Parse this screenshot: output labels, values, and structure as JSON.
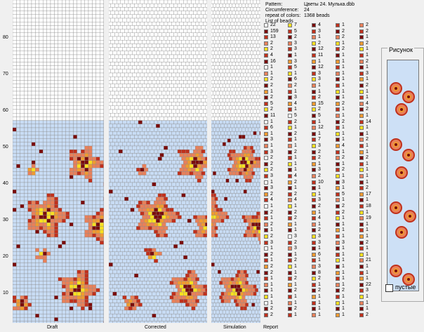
{
  "ruler": {
    "labels": [
      "80",
      "70",
      "60",
      "50",
      "40",
      "30",
      "20",
      "10"
    ]
  },
  "panels": [
    {
      "name": "draft",
      "caption": "Draft"
    },
    {
      "name": "corrected",
      "caption": "Corrected"
    },
    {
      "name": "simulation",
      "caption": "Simulation"
    }
  ],
  "report_caption": "Report",
  "info": {
    "pattern_label": "Pattern:",
    "pattern_value": "Цветы 24. Мулька.dbb",
    "circumference_label": "Circumference:",
    "circumference_value": "24",
    "repeat_label": "repeat of colors:",
    "repeat_value": "1368 beads",
    "list_label": "List of beads"
  },
  "colors": {
    "background_bead": "#c8dcf4",
    "dark_red": "#7a0c0c",
    "red": "#c0301c",
    "salmon": "#e8805a",
    "orange": "#f09a30",
    "yellow": "#f8e020",
    "white": "#ffffff"
  },
  "legend_columns": [
    [
      [
        "white",
        "22"
      ],
      [
        "dark_red",
        "159"
      ],
      [
        "red",
        "13"
      ],
      [
        "salmon",
        "2"
      ],
      [
        "yellow",
        "2"
      ],
      [
        "red",
        "4"
      ],
      [
        "dark_red",
        "16"
      ],
      [
        "white",
        "1"
      ],
      [
        "salmon",
        "1"
      ],
      [
        "yellow",
        "2"
      ],
      [
        "dark_red",
        "2"
      ],
      [
        "orange",
        "1"
      ],
      [
        "dark_red",
        "2"
      ],
      [
        "red",
        "5"
      ],
      [
        "yellow",
        "2"
      ],
      [
        "dark_red",
        "11"
      ],
      [
        "white",
        "1"
      ],
      [
        "red",
        "6"
      ],
      [
        "orange",
        "1"
      ],
      [
        "dark_red",
        "3"
      ],
      [
        "salmon",
        "1"
      ],
      [
        "red",
        "3"
      ],
      [
        "white",
        "2"
      ],
      [
        "dark_red",
        "2"
      ],
      [
        "yellow",
        "2"
      ],
      [
        "red",
        "3"
      ],
      [
        "white",
        "1"
      ],
      [
        "dark_red",
        "3"
      ],
      [
        "orange",
        "2"
      ],
      [
        "red",
        "4"
      ],
      [
        "white",
        "1"
      ],
      [
        "dark_red",
        "2"
      ],
      [
        "red",
        "1"
      ],
      [
        "salmon",
        "2"
      ],
      [
        "dark_red",
        "1"
      ],
      [
        "yellow",
        "2"
      ],
      [
        "red",
        "3"
      ],
      [
        "white",
        "1"
      ],
      [
        "dark_red",
        "2"
      ],
      [
        "red",
        "1"
      ],
      [
        "orange",
        "2"
      ],
      [
        "dark_red",
        "2"
      ],
      [
        "red",
        "1"
      ],
      [
        "salmon",
        "1"
      ],
      [
        "dark_red",
        "1"
      ],
      [
        "yellow",
        "1"
      ],
      [
        "white",
        "1"
      ],
      [
        "dark_red",
        "2"
      ],
      [
        "red",
        "2"
      ]
    ],
    [
      [
        "yellow",
        "7"
      ],
      [
        "red",
        "5"
      ],
      [
        "dark_red",
        "2"
      ],
      [
        "salmon",
        "3"
      ],
      [
        "red",
        "3"
      ],
      [
        "dark_red",
        "1"
      ],
      [
        "orange",
        "3"
      ],
      [
        "red",
        "5"
      ],
      [
        "yellow",
        "1"
      ],
      [
        "dark_red",
        "6"
      ],
      [
        "salmon",
        "2"
      ],
      [
        "red",
        "1"
      ],
      [
        "dark_red",
        "3"
      ],
      [
        "orange",
        "4"
      ],
      [
        "red",
        "1"
      ],
      [
        "white",
        "5"
      ],
      [
        "red",
        "2"
      ],
      [
        "yellow",
        "1"
      ],
      [
        "dark_red",
        "2"
      ],
      [
        "red",
        "1"
      ],
      [
        "salmon",
        "1"
      ],
      [
        "dark_red",
        "2"
      ],
      [
        "red",
        "1"
      ],
      [
        "yellow",
        "1"
      ],
      [
        "dark_red",
        "1"
      ],
      [
        "red",
        "4"
      ],
      [
        "orange",
        "2"
      ],
      [
        "dark_red",
        "1"
      ],
      [
        "red",
        "2"
      ],
      [
        "salmon",
        "4"
      ],
      [
        "yellow",
        "1"
      ],
      [
        "dark_red",
        "2"
      ],
      [
        "red",
        "2"
      ],
      [
        "orange",
        "1"
      ],
      [
        "dark_red",
        "1"
      ],
      [
        "white",
        "3"
      ],
      [
        "red",
        "2"
      ],
      [
        "salmon",
        "3"
      ],
      [
        "dark_red",
        "1"
      ],
      [
        "red",
        "2"
      ],
      [
        "yellow",
        "1"
      ],
      [
        "dark_red",
        "1"
      ],
      [
        "red",
        "2"
      ],
      [
        "orange",
        "1"
      ],
      [
        "dark_red",
        "2"
      ],
      [
        "red",
        "1"
      ],
      [
        "salmon",
        "1"
      ],
      [
        "dark_red",
        "2"
      ],
      [
        "red",
        "1"
      ]
    ],
    [
      [
        "dark_red",
        "4"
      ],
      [
        "red",
        "3"
      ],
      [
        "salmon",
        "1"
      ],
      [
        "yellow",
        "2"
      ],
      [
        "dark_red",
        "12"
      ],
      [
        "red",
        "11"
      ],
      [
        "orange",
        "1"
      ],
      [
        "dark_red",
        "12"
      ],
      [
        "red",
        "3"
      ],
      [
        "yellow",
        "3"
      ],
      [
        "salmon",
        "1"
      ],
      [
        "dark_red",
        "1"
      ],
      [
        "red",
        "2"
      ],
      [
        "orange",
        "15"
      ],
      [
        "yellow",
        "2"
      ],
      [
        "dark_red",
        "5"
      ],
      [
        "red",
        "1"
      ],
      [
        "salmon",
        "12"
      ],
      [
        "dark_red",
        "1"
      ],
      [
        "red",
        "7"
      ],
      [
        "yellow",
        "3"
      ],
      [
        "dark_red",
        "2"
      ],
      [
        "red",
        "2"
      ],
      [
        "orange",
        "1"
      ],
      [
        "dark_red",
        "3"
      ],
      [
        "salmon",
        "2"
      ],
      [
        "red",
        "10"
      ],
      [
        "dark_red",
        "1"
      ],
      [
        "yellow",
        "1"
      ],
      [
        "red",
        "3"
      ],
      [
        "dark_red",
        "2"
      ],
      [
        "orange",
        "1"
      ],
      [
        "red",
        "4"
      ],
      [
        "salmon",
        "1"
      ],
      [
        "dark_red",
        "2"
      ],
      [
        "yellow",
        "3"
      ],
      [
        "red",
        "3"
      ],
      [
        "dark_red",
        "1"
      ],
      [
        "orange",
        "6"
      ],
      [
        "red",
        "1"
      ],
      [
        "salmon",
        "3"
      ],
      [
        "dark_red",
        "8"
      ],
      [
        "yellow",
        "2"
      ],
      [
        "red",
        "1"
      ],
      [
        "dark_red",
        "2"
      ],
      [
        "orange",
        "1"
      ],
      [
        "red",
        "1"
      ],
      [
        "dark_red",
        "1"
      ],
      [
        "salmon",
        "1"
      ]
    ],
    [
      [
        "red",
        "1"
      ],
      [
        "dark_red",
        "2"
      ],
      [
        "salmon",
        "2"
      ],
      [
        "yellow",
        "1"
      ],
      [
        "red",
        "2"
      ],
      [
        "dark_red",
        "1"
      ],
      [
        "orange",
        "1"
      ],
      [
        "red",
        "1"
      ],
      [
        "salmon",
        "1"
      ],
      [
        "dark_red",
        "1"
      ],
      [
        "red",
        "1"
      ],
      [
        "yellow",
        "1"
      ],
      [
        "dark_red",
        "1"
      ],
      [
        "orange",
        "2"
      ],
      [
        "red",
        "1"
      ],
      [
        "salmon",
        "1"
      ],
      [
        "dark_red",
        "2"
      ],
      [
        "red",
        "1"
      ],
      [
        "yellow",
        "1"
      ],
      [
        "dark_red",
        "1"
      ],
      [
        "orange",
        "4"
      ],
      [
        "red",
        "1"
      ],
      [
        "salmon",
        "2"
      ],
      [
        "dark_red",
        "1"
      ],
      [
        "red",
        "2"
      ],
      [
        "yellow",
        "1"
      ],
      [
        "dark_red",
        "3"
      ],
      [
        "orange",
        "1"
      ],
      [
        "red",
        "5"
      ],
      [
        "salmon",
        "1"
      ],
      [
        "dark_red",
        "2"
      ],
      [
        "red",
        "2"
      ],
      [
        "yellow",
        "1"
      ],
      [
        "dark_red",
        "1"
      ],
      [
        "orange",
        "1"
      ],
      [
        "red",
        "1"
      ],
      [
        "salmon",
        "3"
      ],
      [
        "dark_red",
        "1"
      ],
      [
        "red",
        "1"
      ],
      [
        "yellow",
        "1"
      ],
      [
        "dark_red",
        "1"
      ],
      [
        "orange",
        "1"
      ],
      [
        "red",
        "1"
      ],
      [
        "salmon",
        "1"
      ],
      [
        "dark_red",
        "2"
      ],
      [
        "red",
        "1"
      ],
      [
        "yellow",
        "1"
      ],
      [
        "dark_red",
        "1"
      ],
      [
        "orange",
        "1"
      ]
    ],
    [
      [
        "salmon",
        "2"
      ],
      [
        "red",
        "2"
      ],
      [
        "dark_red",
        "1"
      ],
      [
        "orange",
        "2"
      ],
      [
        "yellow",
        "1"
      ],
      [
        "red",
        "1"
      ],
      [
        "salmon",
        "2"
      ],
      [
        "dark_red",
        "1"
      ],
      [
        "red",
        "3"
      ],
      [
        "orange",
        "1"
      ],
      [
        "dark_red",
        "2"
      ],
      [
        "yellow",
        "1"
      ],
      [
        "red",
        "1"
      ],
      [
        "salmon",
        "4"
      ],
      [
        "dark_red",
        "2"
      ],
      [
        "orange",
        "1"
      ],
      [
        "red",
        "14"
      ],
      [
        "yellow",
        "1"
      ],
      [
        "dark_red",
        "1"
      ],
      [
        "salmon",
        "2"
      ],
      [
        "red",
        "1"
      ],
      [
        "orange",
        "1"
      ],
      [
        "dark_red",
        "2"
      ],
      [
        "red",
        "1"
      ],
      [
        "yellow",
        "1"
      ],
      [
        "salmon",
        "1"
      ],
      [
        "dark_red",
        "1"
      ],
      [
        "red",
        "2"
      ],
      [
        "orange",
        "17"
      ],
      [
        "dark_red",
        "1"
      ],
      [
        "red",
        "18"
      ],
      [
        "yellow",
        "1"
      ],
      [
        "salmon",
        "19"
      ],
      [
        "dark_red",
        "1"
      ],
      [
        "red",
        "1"
      ],
      [
        "orange",
        "1"
      ],
      [
        "dark_red",
        "2"
      ],
      [
        "red",
        "1"
      ],
      [
        "yellow",
        "1"
      ],
      [
        "salmon",
        "21"
      ],
      [
        "dark_red",
        "1"
      ],
      [
        "red",
        "1"
      ],
      [
        "orange",
        "1"
      ],
      [
        "dark_red",
        "22"
      ],
      [
        "red",
        "3"
      ],
      [
        "yellow",
        "1"
      ],
      [
        "salmon",
        "1"
      ],
      [
        "dark_red",
        "1"
      ],
      [
        "red",
        "2"
      ]
    ]
  ],
  "preview": {
    "title": "Рисунок",
    "empty_label": "пустые"
  }
}
